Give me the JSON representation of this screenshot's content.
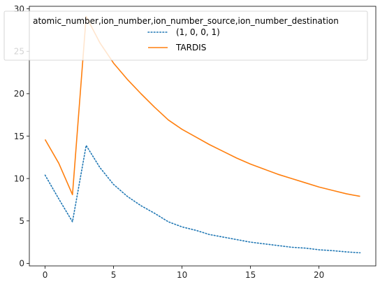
{
  "chart_data": {
    "type": "line",
    "title": "",
    "xlabel": "",
    "ylabel": "",
    "xlim": [
      -1.15,
      24.15
    ],
    "ylim": [
      -0.3,
      30.3
    ],
    "xticks": [
      0,
      5,
      10,
      15,
      20
    ],
    "yticks": [
      0,
      5,
      10,
      15,
      20,
      25,
      30
    ],
    "grid": false,
    "legend": {
      "title": "atomic_number,ion_number,ion_number_source,ion_number_destination",
      "placement": "top-center"
    },
    "x": [
      0,
      1,
      2,
      3,
      4,
      5,
      6,
      7,
      8,
      9,
      10,
      11,
      12,
      13,
      14,
      15,
      16,
      17,
      18,
      19,
      20,
      21,
      22,
      23
    ],
    "series": [
      {
        "name": "(1, 0, 0, 1)",
        "color": "#1f77b4",
        "style": "dotted",
        "values": [
          10.4,
          7.6,
          4.9,
          13.9,
          11.3,
          9.3,
          7.9,
          6.8,
          5.9,
          4.9,
          4.3,
          3.9,
          3.4,
          3.1,
          2.8,
          2.5,
          2.3,
          2.1,
          1.9,
          1.8,
          1.6,
          1.5,
          1.35,
          1.25
        ]
      },
      {
        "name": "TARDIS",
        "color": "#ff7f0e",
        "style": "solid",
        "values": [
          14.6,
          11.8,
          8.1,
          29.1,
          26.0,
          23.6,
          21.7,
          20.0,
          18.4,
          16.9,
          15.8,
          14.9,
          14.0,
          13.2,
          12.4,
          11.7,
          11.1,
          10.5,
          10.0,
          9.5,
          9.0,
          8.6,
          8.2,
          7.9
        ]
      }
    ]
  }
}
